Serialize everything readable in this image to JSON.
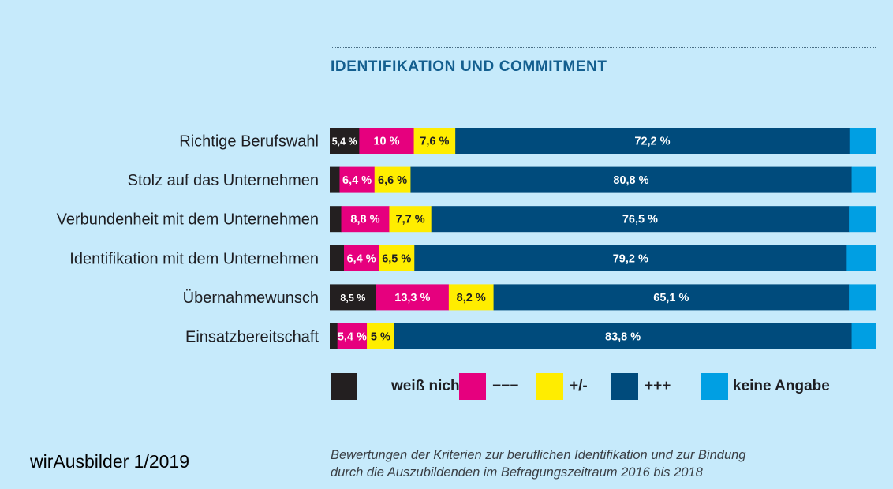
{
  "header": {
    "title": "IDENTIFIKATION UND COMMITMENT"
  },
  "chart_data": {
    "type": "bar",
    "orientation": "horizontal",
    "stacked": true,
    "title": "IDENTIFIKATION UND COMMITMENT",
    "xlabel": "",
    "ylabel": "",
    "xlim": [
      0,
      100
    ],
    "grid": false,
    "legend_position": "bottom",
    "categories": [
      "Richtige Berufswahl",
      "Stolz auf das Unternehmen",
      "Verbundenheit mit dem Unternehmen",
      "Identifikation mit dem Unternehmen",
      "Übernahmewunsch",
      "Einsatzbereitschaft"
    ],
    "series": [
      {
        "name": "weiß nicht",
        "color": "#231f20",
        "values": [
          5.4,
          1.8,
          2.1,
          2.6,
          8.5,
          1.4
        ],
        "labels": [
          "5,4 %",
          "",
          "",
          "",
          "8,5 %",
          ""
        ]
      },
      {
        "name": "−−−",
        "color": "#e6007e",
        "values": [
          10,
          6.4,
          8.8,
          6.4,
          13.3,
          5.4
        ],
        "labels": [
          "10 %",
          "6,4 %",
          "8,8 %",
          "6,4 %",
          "13,3 %",
          "5,4 %"
        ]
      },
      {
        "name": "+/-",
        "color": "#ffed00",
        "values": [
          7.6,
          6.6,
          7.7,
          6.5,
          8.2,
          5
        ],
        "labels": [
          "7,6 %",
          "6,6 %",
          "7,7 %",
          "6,5 %",
          "8,2 %",
          "5 %"
        ]
      },
      {
        "name": "+++",
        "color": "#004b7c",
        "values": [
          72.2,
          80.8,
          76.5,
          79.2,
          65.1,
          83.8
        ],
        "labels": [
          "72,2 %",
          "80,8 %",
          "76,5 %",
          "79,2 %",
          "65,1 %",
          "83,8 %"
        ]
      },
      {
        "name": "keine Angabe",
        "color": "#009fe3",
        "values": [
          4.8,
          4.4,
          4.9,
          5.3,
          4.9,
          4.4
        ],
        "labels": [
          "",
          "",
          "",
          "",
          "",
          ""
        ]
      }
    ]
  },
  "legend": {
    "items": [
      {
        "label": "weiß nicht",
        "color": "#231f20"
      },
      {
        "label": "−−−",
        "color": "#e6007e"
      },
      {
        "label": "+/-",
        "color": "#ffed00"
      },
      {
        "label": "+++",
        "color": "#004b7c"
      },
      {
        "label": "keine Angabe",
        "color": "#009fe3"
      }
    ]
  },
  "caption": {
    "line1": "Bewertungen der Kriterien zur beruflichen Identifikation und zur Bindung",
    "line2": "durch die Auszubildenden im Befragungszeitraum 2016 bis 2018"
  },
  "source": {
    "label": "wirAusbilder 1/2019"
  },
  "colors": {
    "background": "#c6eafb",
    "title": "#145f8f"
  }
}
